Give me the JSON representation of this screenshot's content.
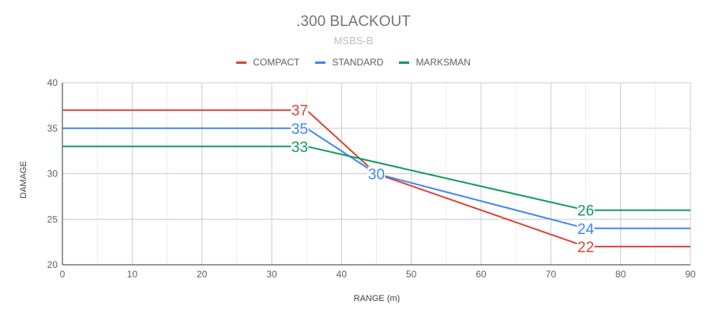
{
  "chart_data": {
    "type": "line",
    "title": ".300 BLACKOUT",
    "subtitle": "MSBS-B",
    "xlabel": "RANGE (m)",
    "ylabel": "DAMAGE",
    "xlim": [
      0,
      90
    ],
    "ylim": [
      20,
      40
    ],
    "x_ticks": [
      0,
      10,
      20,
      30,
      40,
      50,
      60,
      70,
      80,
      90
    ],
    "y_ticks": [
      20,
      25,
      30,
      35,
      40
    ],
    "x_minor_step": 5,
    "grid": true,
    "legend_position": "top",
    "series": [
      {
        "name": "COMPACT",
        "color": "#db4437",
        "points": [
          [
            0,
            37
          ],
          [
            35,
            37
          ],
          [
            45,
            30
          ],
          [
            75,
            22
          ],
          [
            90,
            22
          ]
        ],
        "labels": [
          {
            "x": 34,
            "y": 37,
            "text": "37"
          },
          {
            "x": 75,
            "y": 22,
            "text": "22"
          }
        ]
      },
      {
        "name": "STANDARD",
        "color": "#4285f4",
        "points": [
          [
            0,
            35
          ],
          [
            35,
            35
          ],
          [
            45,
            30
          ],
          [
            75,
            24
          ],
          [
            90,
            24
          ]
        ],
        "labels": [
          {
            "x": 34,
            "y": 35,
            "text": "35"
          },
          {
            "x": 45,
            "y": 30,
            "text": "30"
          },
          {
            "x": 75,
            "y": 24,
            "text": "24"
          }
        ]
      },
      {
        "name": "MARKSMAN",
        "color": "#0f9d58",
        "points": [
          [
            0,
            33
          ],
          [
            35,
            33
          ],
          [
            75,
            26
          ],
          [
            90,
            26
          ]
        ],
        "labels": [
          {
            "x": 34,
            "y": 33,
            "text": "33"
          },
          {
            "x": 75,
            "y": 26,
            "text": "26"
          }
        ]
      }
    ]
  }
}
